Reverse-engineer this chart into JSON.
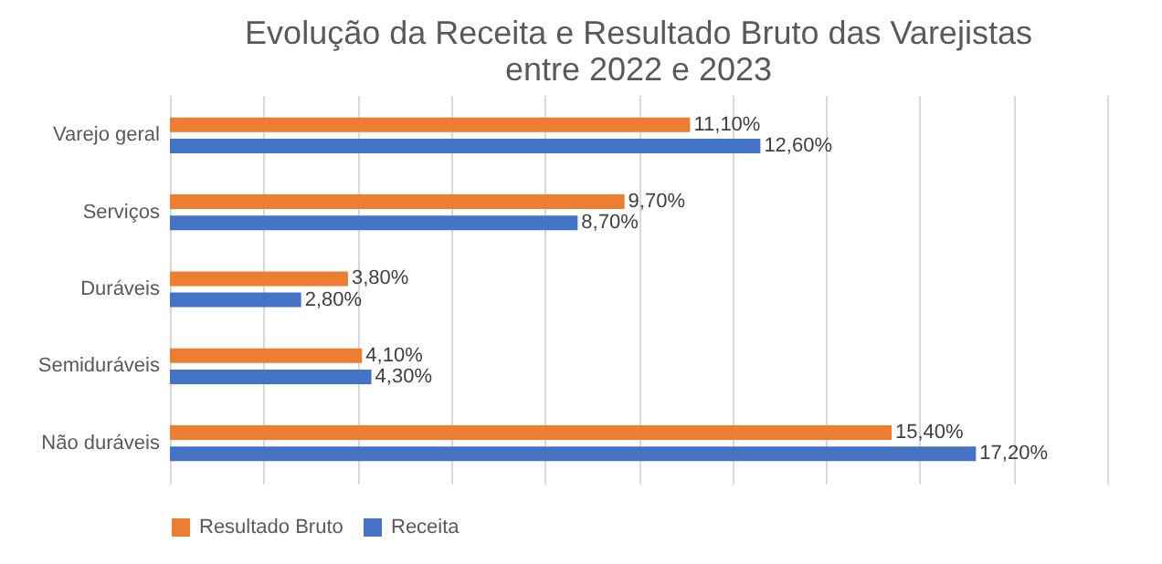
{
  "chart_data": {
    "type": "bar",
    "orientation": "horizontal",
    "title": "Evolução da Receita e Resultado Bruto das Varejistas entre 2022 e 2023",
    "categories": [
      "Varejo geral",
      "Serviços",
      "Duráveis",
      "Semiduráveis",
      "Não duráveis"
    ],
    "series": [
      {
        "name": "Resultado Bruto",
        "color": "#ed7d31",
        "values": [
          11.1,
          9.7,
          3.8,
          4.1,
          15.4
        ],
        "value_labels": [
          "11,10%",
          "9,70%",
          "3,80%",
          "4,10%",
          "15,40%"
        ]
      },
      {
        "name": "Receita",
        "color": "#4472c4",
        "values": [
          12.6,
          8.7,
          2.8,
          4.3,
          17.2
        ],
        "value_labels": [
          "12,60%",
          "8,70%",
          "2,80%",
          "4,30%",
          "17,20%"
        ]
      }
    ],
    "xlim": [
      0,
      20
    ],
    "xticks": [
      {
        "value": 0,
        "label": null
      },
      {
        "value": 2,
        "label": null
      },
      {
        "value": 4,
        "label": null
      },
      {
        "value": 6,
        "label": null
      },
      {
        "value": 8,
        "label": null
      },
      {
        "value": 10,
        "label": null
      },
      {
        "value": 12,
        "label": null
      },
      {
        "value": 14,
        "label": null
      },
      {
        "value": 16,
        "label": null
      },
      {
        "value": 18,
        "label": null
      },
      {
        "value": 20,
        "label": null
      }
    ],
    "tick_labels": "y",
    "grid": "x",
    "legend": "bottom"
  }
}
